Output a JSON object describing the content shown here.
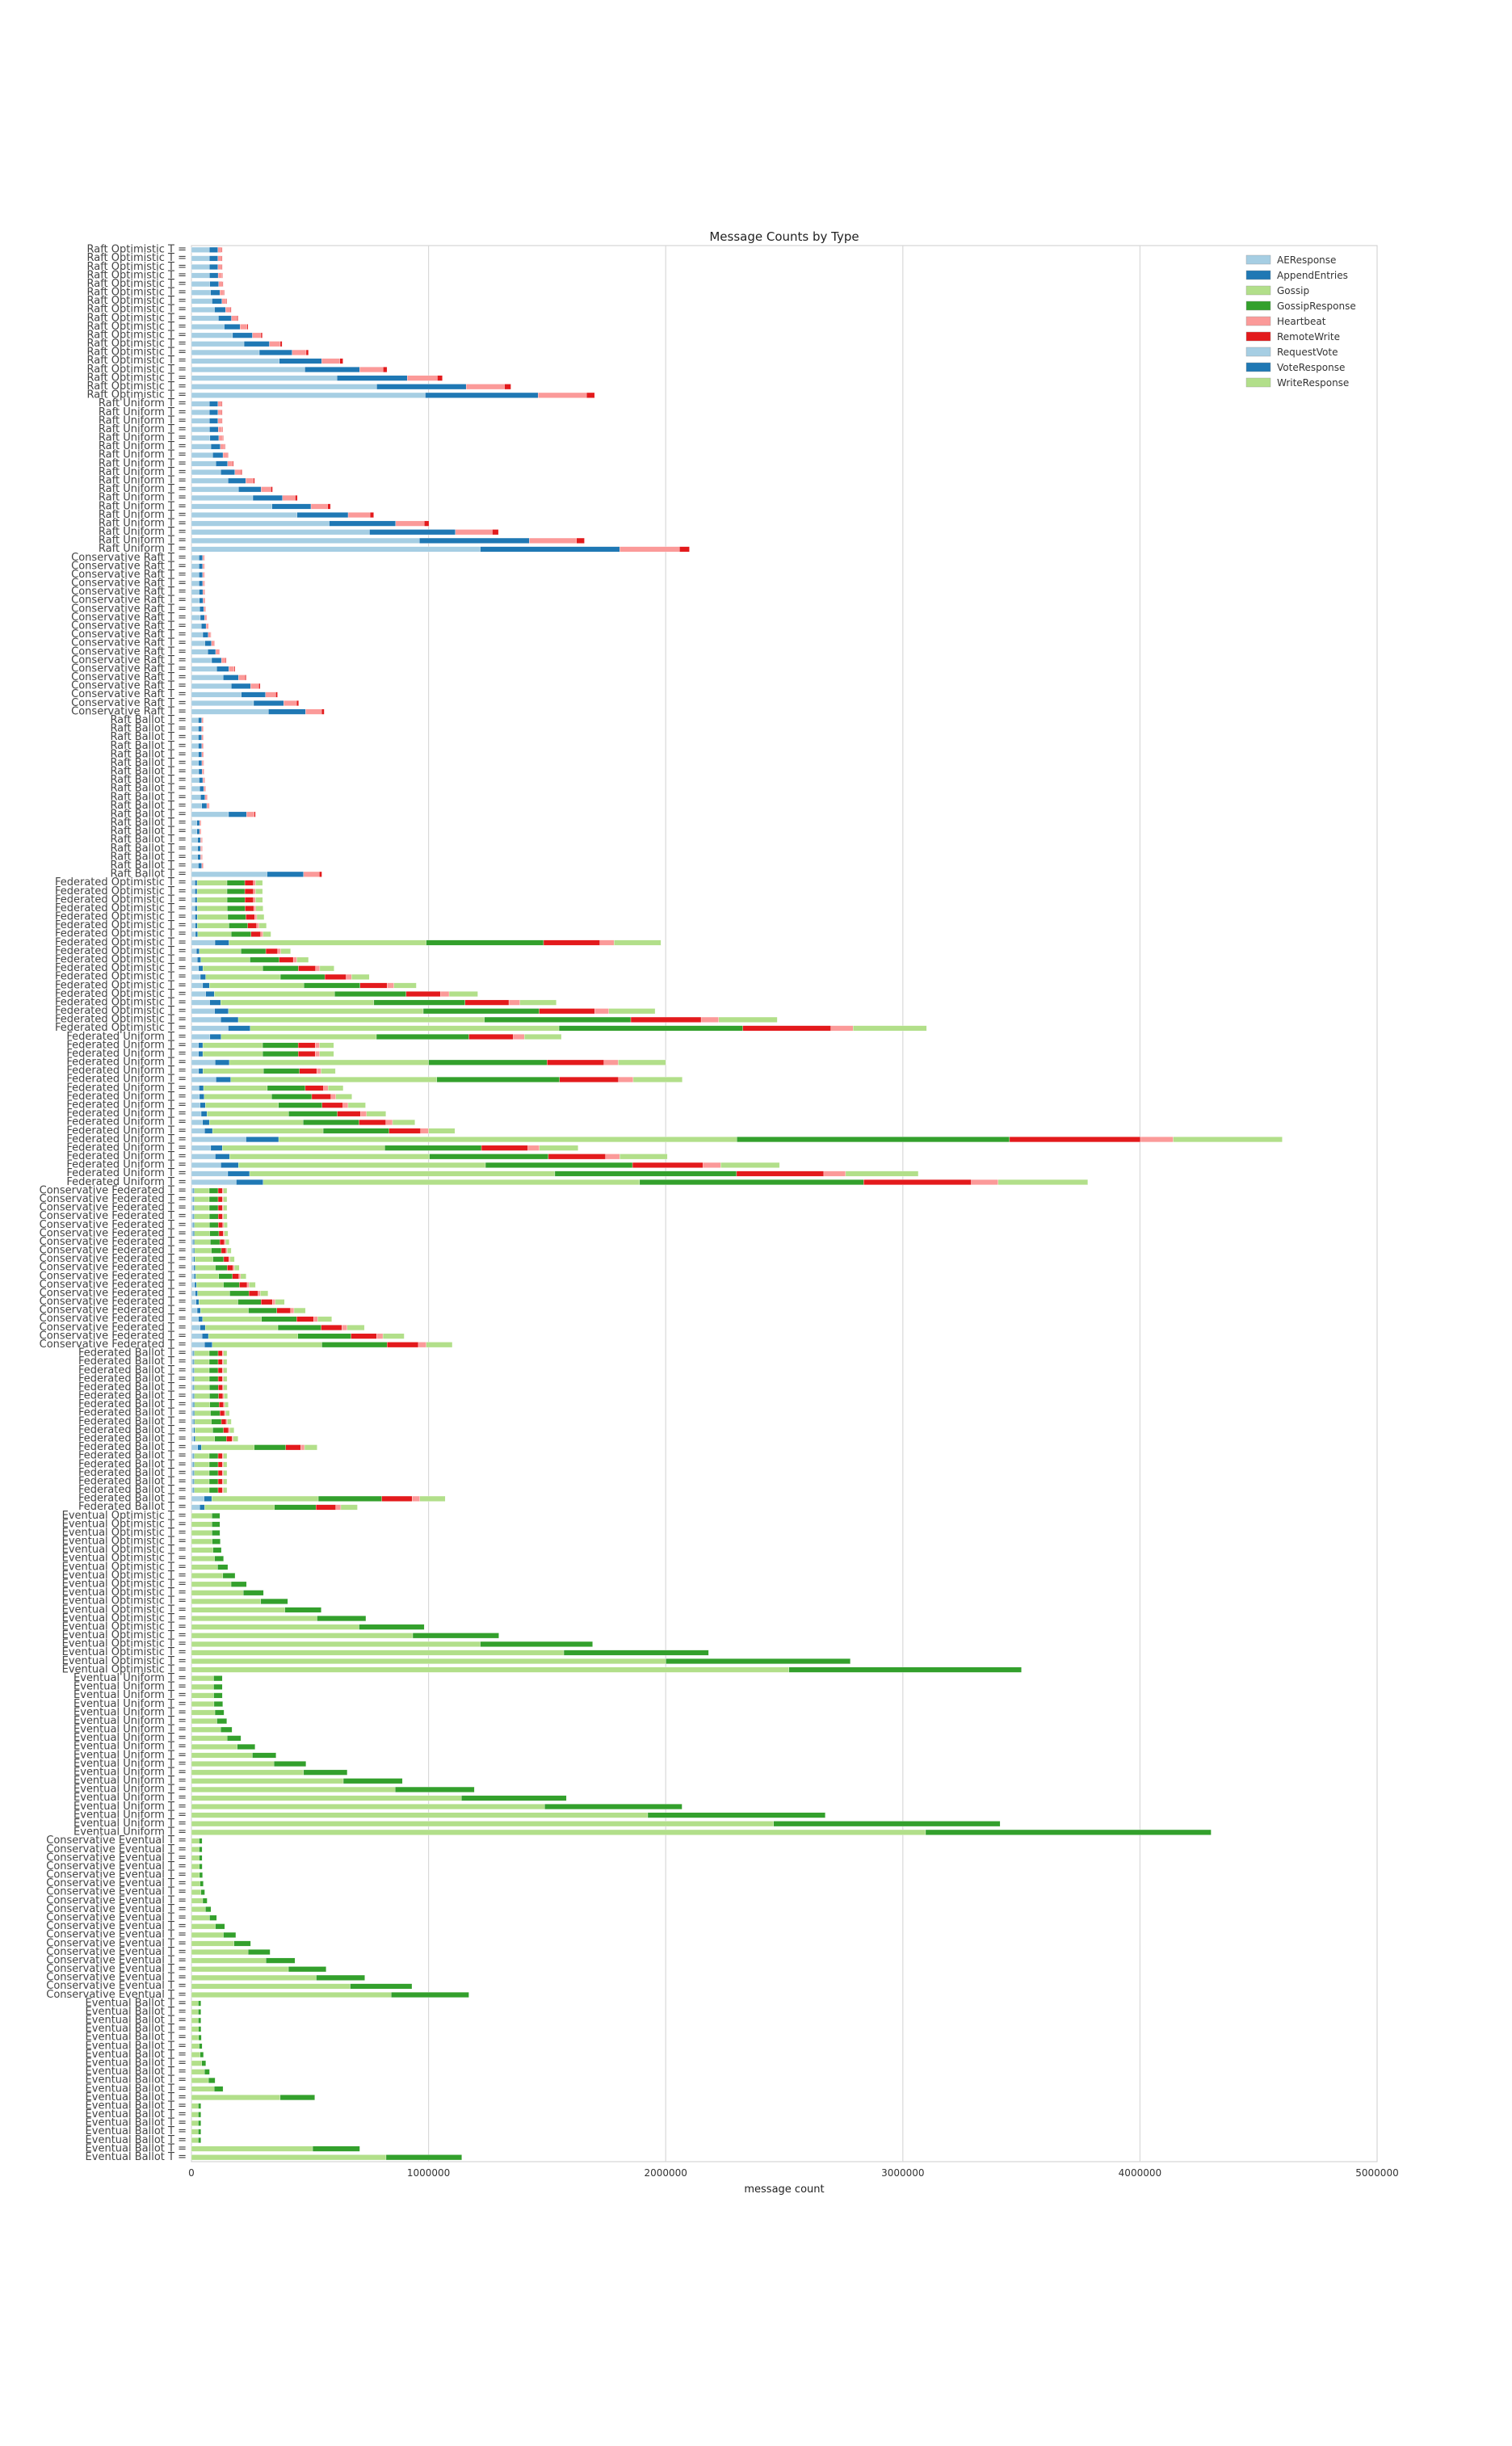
{
  "chart_data": {
    "type": "bar",
    "orientation": "horizontal",
    "stacked": true,
    "title": "Message Counts by Type",
    "xlabel": "message count",
    "ylabel": "",
    "xlim": [
      0,
      5000000
    ],
    "x_ticks": [
      0,
      1000000,
      2000000,
      3000000,
      4000000,
      5000000
    ],
    "x_tick_labels": [
      "0",
      "1000000",
      "2000000",
      "3000000",
      "4000000",
      "5000000"
    ],
    "grid": true,
    "legend_position": "top-right",
    "series": [
      {
        "name": "AEResponse",
        "color": "#a6cee3"
      },
      {
        "name": "AppendEntries",
        "color": "#1f78b4"
      },
      {
        "name": "Gossip",
        "color": "#b2df8a"
      },
      {
        "name": "GossipResponse",
        "color": "#33a02c"
      },
      {
        "name": "Heartbeat",
        "color": "#fb9a99"
      },
      {
        "name": "RemoteWrite",
        "color": "#e31a1c"
      },
      {
        "name": "RequestVote",
        "color": "#a6cee3"
      },
      {
        "name": "VoteResponse",
        "color": "#1f78b4"
      },
      {
        "name": "WriteResponse",
        "color": "#b2df8a"
      }
    ],
    "groups": [
      {
        "label": "Raft Optimistic T = ",
        "mode": "raft",
        "size": 18,
        "max": 1700000,
        "min": 130000,
        "outliers": []
      },
      {
        "label": "Raft Uniform T = ",
        "mode": "raft",
        "size": 18,
        "max": 2100000,
        "min": 130000,
        "outliers": []
      },
      {
        "label": "Conservative Raft T = ",
        "mode": "raft",
        "size": 19,
        "max": 560000,
        "min": 55000,
        "outliers": []
      },
      {
        "label": "Raft Ballot T = ",
        "mode": "raft",
        "size": 19,
        "max": 350000,
        "min": 50000,
        "outliers": [
          [
            11,
            270000
          ],
          [
            12,
            40000
          ],
          [
            13,
            40000
          ],
          [
            14,
            45000
          ],
          [
            15,
            45000
          ],
          [
            16,
            45000
          ],
          [
            17,
            50000
          ],
          [
            18,
            550000
          ]
        ]
      },
      {
        "label": "Federated Optimistic T = ",
        "mode": "fed",
        "size": 18,
        "max": 3100000,
        "min": 300000,
        "outliers": [
          [
            7,
            1980000
          ]
        ]
      },
      {
        "label": "Federated Uniform T = ",
        "mode": "fed",
        "size": 18,
        "max": 3780000,
        "min": 600000,
        "outliers": [
          [
            0,
            1560000
          ],
          [
            3,
            2000000
          ],
          [
            5,
            2070000
          ],
          [
            12,
            4600000
          ]
        ]
      },
      {
        "label": "Conservative Federated T = ",
        "mode": "fed",
        "size": 19,
        "max": 1100000,
        "min": 150000,
        "outliers": []
      },
      {
        "label": "Federated Ballot T = ",
        "mode": "fed",
        "size": 19,
        "max": 700000,
        "min": 150000,
        "outliers": [
          [
            11,
            530000
          ],
          [
            12,
            150000
          ],
          [
            13,
            150000
          ],
          [
            14,
            150000
          ],
          [
            15,
            150000
          ],
          [
            16,
            150000
          ],
          [
            17,
            1070000
          ]
        ]
      },
      {
        "label": "Eventual Optimistic T = ",
        "mode": "ev",
        "size": 19,
        "max": 3500000,
        "min": 120000,
        "outliers": []
      },
      {
        "label": "Eventual Uniform T = ",
        "mode": "ev",
        "size": 19,
        "max": 4300000,
        "min": 130000,
        "outliers": []
      },
      {
        "label": "Conservative Eventual T = ",
        "mode": "ev",
        "size": 19,
        "max": 1170000,
        "min": 45000,
        "outliers": []
      },
      {
        "label": "Eventual Ballot T = ",
        "mode": "ev",
        "size": 19,
        "max": 1140000,
        "min": 40000,
        "outliers": [
          [
            11,
            520000
          ],
          [
            12,
            40000
          ],
          [
            13,
            40000
          ],
          [
            14,
            40000
          ],
          [
            15,
            40000
          ],
          [
            16,
            40000
          ],
          [
            17,
            710000
          ]
        ]
      }
    ]
  }
}
